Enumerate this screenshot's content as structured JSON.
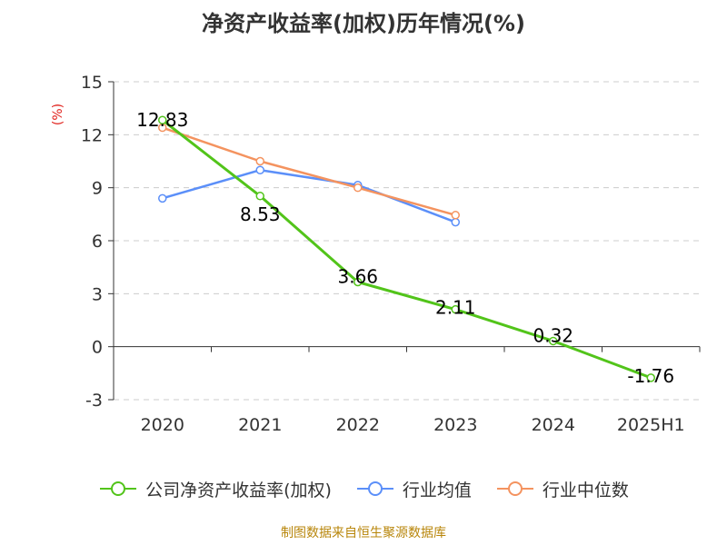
{
  "chart_data": {
    "type": "line",
    "title": "净资产收益率(加权)历年情况(%)",
    "ylabel": "(%)",
    "categories": [
      "2020",
      "2021",
      "2022",
      "2023",
      "2024",
      "2025H1"
    ],
    "ylim": [
      -3,
      15
    ],
    "yticks": [
      "15",
      "12",
      "9",
      "6",
      "3",
      "0",
      "-3"
    ],
    "ytick_values": [
      15,
      12,
      9,
      6,
      3,
      0,
      -3
    ],
    "grid": true,
    "legend_position": "bottom",
    "series": [
      {
        "name": "公司净资产收益率(加权)",
        "color": "#52c41a",
        "values": [
          12.83,
          8.53,
          3.66,
          2.11,
          0.32,
          -1.76
        ],
        "labels": [
          "12.83",
          "8.53",
          "3.66",
          "2.11",
          "0.32",
          "-1.76"
        ]
      },
      {
        "name": "行业均值",
        "color": "#5b8ff9",
        "values": [
          8.4,
          10.0,
          9.15,
          7.05,
          null,
          null
        ]
      },
      {
        "name": "行业中位数",
        "color": "#f4935f",
        "values": [
          12.4,
          10.5,
          9.0,
          7.45,
          null,
          null
        ]
      }
    ]
  },
  "footer": {
    "source": "制图数据来自恒生聚源数据库"
  }
}
